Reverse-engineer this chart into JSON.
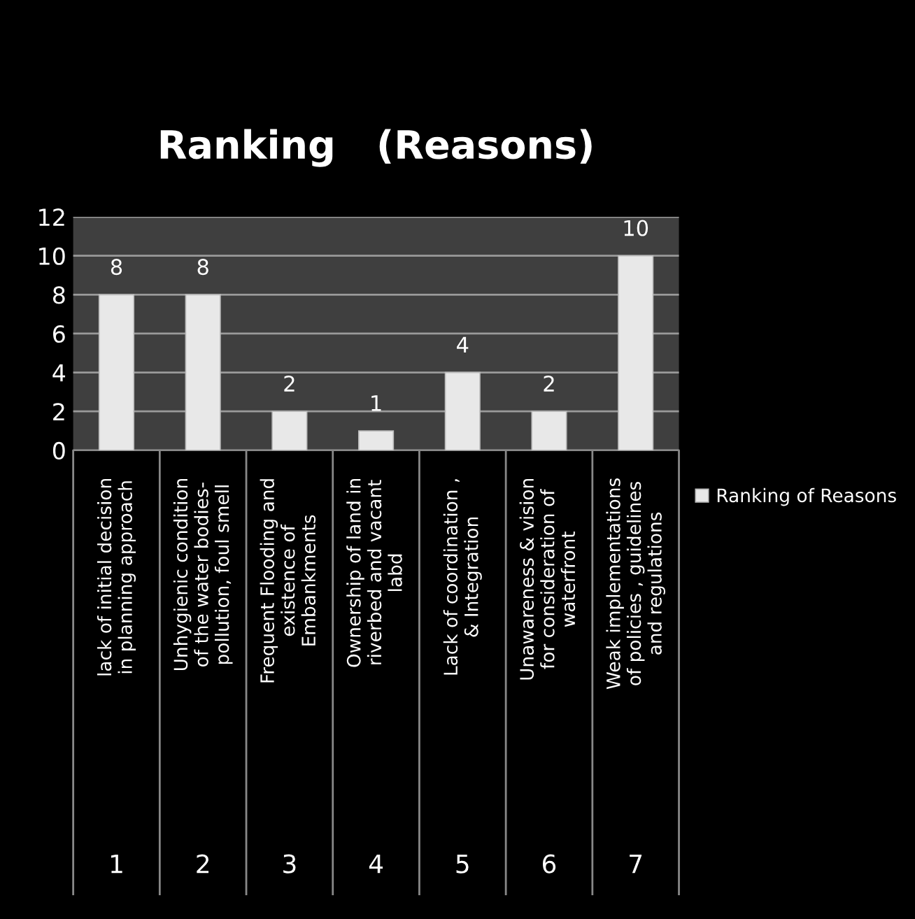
{
  "chart_data": {
    "type": "bar",
    "title": "Ranking   (Reasons)",
    "categories": [
      "lack of initial decision\nin planning approach",
      "Unhygienic condition\nof the water bodies-\npollution, foul smell",
      "Frequent Flooding and\nexistence of\nEmbankments",
      "Ownership of land in\nriverbed and vacant\nlabd",
      "Lack of coordination ,\n& Integration",
      "Unawareness & vision\nfor consideration of\nwaterfront",
      "Weak implementations\nof policies , guidelines\nand regulations"
    ],
    "series": [
      {
        "name": "Ranking of Reasons",
        "color": "#e8e8e8",
        "values": [
          8,
          8,
          2,
          1,
          4,
          2,
          10
        ]
      }
    ],
    "ylim": [
      0,
      12
    ],
    "yticks": [
      0,
      2,
      4,
      6,
      8,
      10,
      12
    ],
    "grid": "y",
    "data_labels": true,
    "legend": "right",
    "annotations": [
      "1",
      "2",
      "3",
      "4",
      "5",
      "6",
      "7"
    ]
  }
}
